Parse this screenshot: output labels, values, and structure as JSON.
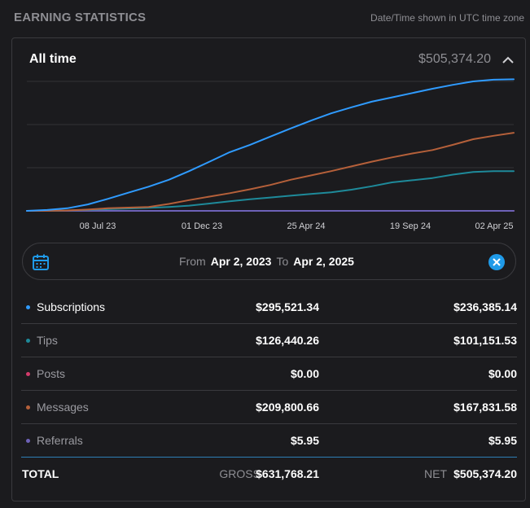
{
  "header": {
    "title": "EARNING STATISTICS",
    "note": "Date/Time shown in UTC time zone"
  },
  "card": {
    "period": "All time",
    "total": "$505,374.20"
  },
  "chart_data": {
    "type": "line",
    "x_labels": [
      "08 Jul 23",
      "01 Dec 23",
      "25 Apr 24",
      "19 Sep 24",
      "02 Apr 25"
    ],
    "x_range": [
      0,
      24
    ],
    "y_range": [
      0,
      300000
    ],
    "grid": true,
    "series": [
      {
        "name": "Subscriptions",
        "color": "#2f9bff",
        "x": [
          0,
          1,
          2,
          3,
          4,
          5,
          6,
          7,
          8,
          9,
          10,
          11,
          12,
          13,
          14,
          15,
          16,
          17,
          18,
          19,
          20,
          21,
          22,
          23,
          24
        ],
        "values": [
          0,
          2000,
          6000,
          15000,
          28000,
          42000,
          56000,
          72000,
          92000,
          114000,
          136000,
          153000,
          172000,
          191000,
          209000,
          226000,
          240000,
          253000,
          263000,
          273000,
          283000,
          292000,
          300000,
          304000,
          305000
        ]
      },
      {
        "name": "Tips",
        "color": "#1e8a9a",
        "x": [
          0,
          1,
          2,
          3,
          4,
          5,
          6,
          7,
          8,
          9,
          10,
          11,
          12,
          13,
          14,
          15,
          16,
          17,
          18,
          19,
          20,
          21,
          22,
          23,
          24
        ],
        "values": [
          0,
          0,
          1000,
          2500,
          4000,
          5500,
          7000,
          9000,
          12000,
          17000,
          22000,
          27000,
          31000,
          35000,
          39000,
          43000,
          49000,
          57000,
          66000,
          71000,
          76000,
          84000,
          90000,
          92000,
          92000
        ]
      },
      {
        "name": "Posts",
        "color": "#d33b6b",
        "x": [
          0,
          24
        ],
        "values": [
          0,
          0
        ]
      },
      {
        "name": "Messages",
        "color": "#b5603a",
        "x": [
          0,
          1,
          2,
          3,
          4,
          5,
          6,
          7,
          8,
          9,
          10,
          11,
          12,
          13,
          14,
          15,
          16,
          17,
          18,
          19,
          20,
          21,
          22,
          23,
          24
        ],
        "values": [
          0,
          0,
          1000,
          3000,
          6000,
          7500,
          9000,
          16000,
          25000,
          33000,
          41000,
          50000,
          60000,
          72000,
          82000,
          92000,
          103000,
          114000,
          124000,
          133000,
          141000,
          153000,
          166000,
          174000,
          181000
        ]
      },
      {
        "name": "Referrals",
        "color": "#6e62b8",
        "x": [
          0,
          24
        ],
        "values": [
          0,
          0
        ]
      }
    ]
  },
  "range": {
    "from_label": "From",
    "from": "Apr 2, 2023",
    "to_label": "To",
    "to": "Apr 2, 2025"
  },
  "rows": [
    {
      "name": "Subscriptions",
      "gross": "$295,521.34",
      "net": "$236,385.14",
      "color": "#2f9bff"
    },
    {
      "name": "Tips",
      "gross": "$126,440.26",
      "net": "$101,151.53",
      "color": "#1e8a9a"
    },
    {
      "name": "Posts",
      "gross": "$0.00",
      "net": "$0.00",
      "color": "#d33b6b"
    },
    {
      "name": "Messages",
      "gross": "$209,800.66",
      "net": "$167,831.58",
      "color": "#b5603a"
    },
    {
      "name": "Referrals",
      "gross": "$5.95",
      "net": "$5.95",
      "color": "#6e62b8"
    }
  ],
  "total": {
    "label": "TOTAL",
    "gross_label": "GROSS",
    "gross": "$631,768.21",
    "net_label": "NET",
    "net": "$505,374.20"
  },
  "icons": {
    "collapse": "chevron-up-icon",
    "calendar": "calendar-icon",
    "clear": "close-circle-icon"
  },
  "colors": {
    "accent": "#2f9bff",
    "clear_button": "#1f9ae8"
  }
}
